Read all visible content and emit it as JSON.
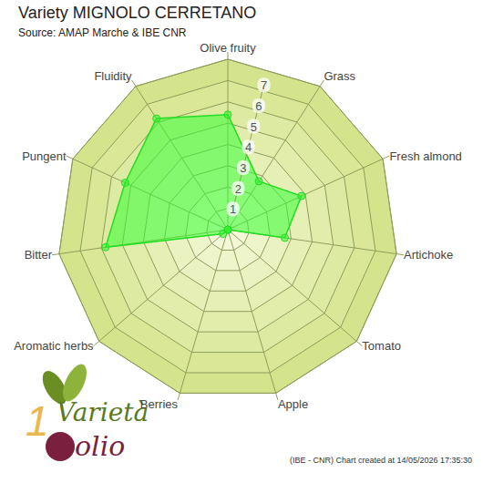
{
  "chart_data": {
    "type": "radar",
    "title": "Variety MIGNOLO CERRETANO",
    "subtitle": "Source: AMAP Marche & IBE CNR",
    "categories": [
      "Olive fruity",
      "Grass",
      "Fresh almond",
      "Artichoke",
      "Tomato",
      "Apple",
      "Berries",
      "Aromatic herbs",
      "Bitter",
      "Pungent",
      "Fluidity"
    ],
    "values": [
      5.4,
      2.7,
      3.8,
      2.7,
      0,
      0,
      0,
      0.3,
      5.8,
      5.3,
      6.2
    ],
    "color": "#22dd22",
    "ylim": [
      0,
      8
    ],
    "yticks": [
      1,
      2,
      3,
      4,
      5,
      6,
      7
    ],
    "grid": true,
    "footer": "(IBE - CNR) Chart created at 14/05/2026 17:35:30",
    "logo_text": [
      "Varietà",
      "olio"
    ]
  }
}
